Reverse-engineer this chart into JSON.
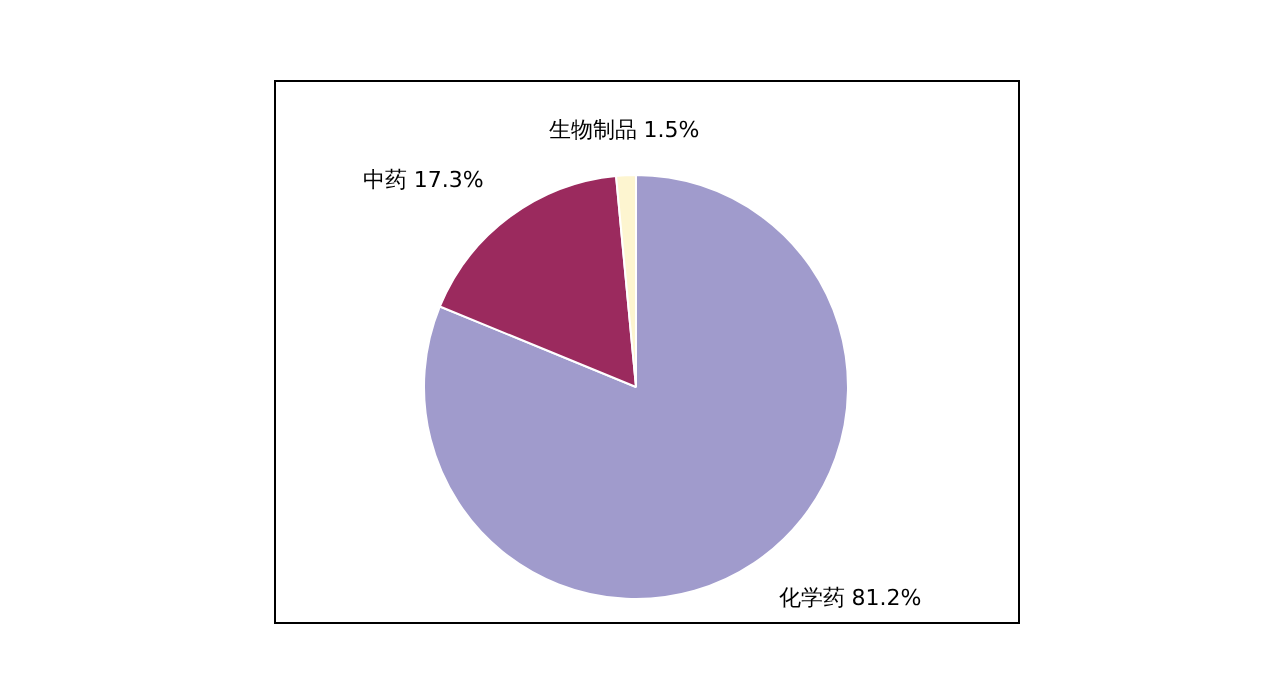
{
  "chart_data": {
    "type": "pie",
    "categories": [
      "化学药",
      "中药",
      "生物制品"
    ],
    "values": [
      81.2,
      17.3,
      1.5
    ],
    "colors": [
      "#a09bcc",
      "#9b2a5e",
      "#fdf5d0"
    ],
    "value_labels": [
      "81.2%",
      "17.3%",
      "1.5%"
    ],
    "legend": false
  }
}
